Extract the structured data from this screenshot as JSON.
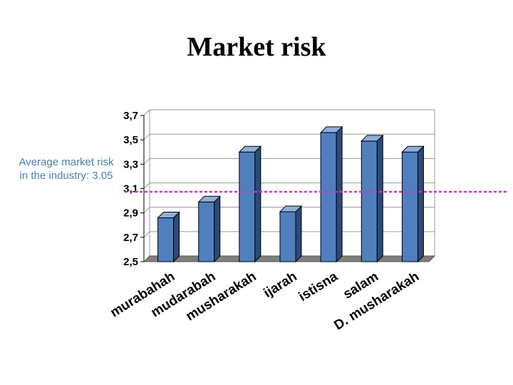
{
  "title": "Market risk",
  "annotation": "Average market risk in the industry: 3.05",
  "chart_data": {
    "type": "bar",
    "title": "Market risk",
    "xlabel": "",
    "ylabel": "",
    "categories": [
      "murabahah",
      "mudarabah",
      "musharakah",
      "ijarah",
      "istisna",
      "salam",
      "D. musharakah"
    ],
    "values": [
      2.86,
      2.99,
      3.4,
      2.91,
      3.56,
      3.49,
      3.4
    ],
    "ylim": [
      2.5,
      3.7
    ],
    "yticks": [
      "2,5",
      "2,7",
      "2,9",
      "3,1",
      "3,3",
      "3,5",
      "3,7"
    ],
    "ytick_values": [
      2.5,
      2.7,
      2.9,
      3.1,
      3.3,
      3.5,
      3.7
    ],
    "reference_line": {
      "value": 3.05,
      "color": "#cc33cc"
    },
    "grid": true,
    "colors": {
      "bar_front": "#4f7fbf",
      "bar_side": "#2c4a7a",
      "bar_top": "#8fb0dc",
      "floor": "#7f7f7f"
    }
  }
}
